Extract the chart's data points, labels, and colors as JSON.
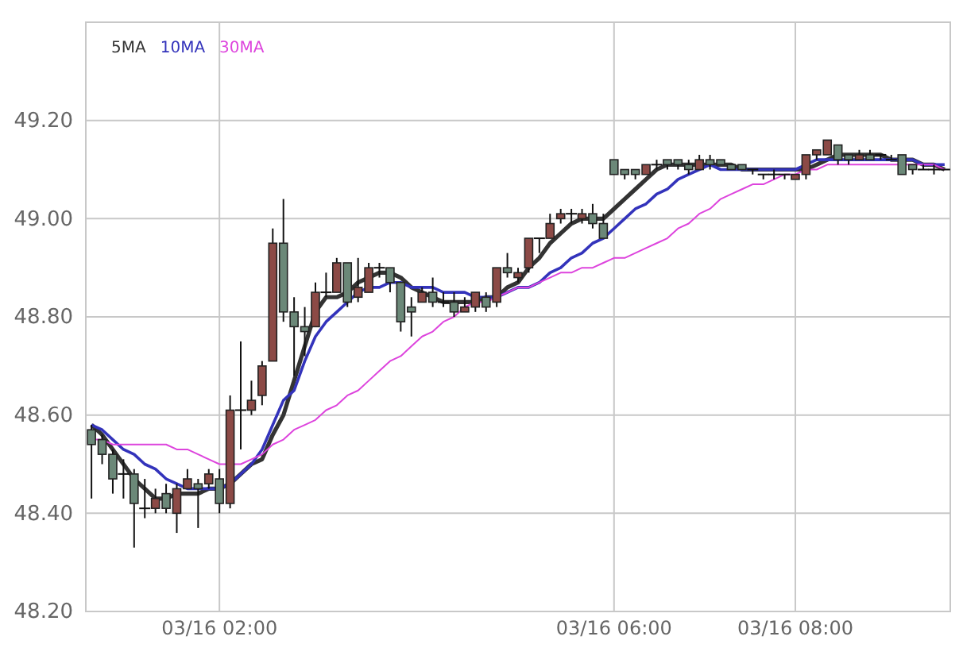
{
  "chart_data": {
    "type": "candlestick",
    "categories": [
      null,
      null,
      null,
      null,
      null,
      null,
      null,
      null,
      null,
      null,
      null,
      null,
      "03/16 02:00",
      null,
      null,
      null,
      null,
      null,
      null,
      null,
      null,
      null,
      null,
      null,
      null,
      null,
      null,
      null,
      null,
      null,
      null,
      null,
      null,
      null,
      null,
      null,
      null,
      null,
      null,
      null,
      null,
      null,
      null,
      null,
      null,
      null,
      null,
      null,
      null,
      "03/16 06:00",
      null,
      null,
      null,
      null,
      null,
      null,
      null,
      null,
      null,
      null,
      null,
      null,
      null,
      null,
      null,
      null,
      "03/16 08:00",
      null,
      null,
      null,
      null,
      null,
      null,
      null,
      null,
      null,
      null,
      null,
      null,
      null,
      null
    ],
    "ohlc": [
      [
        48.57,
        48.58,
        48.43,
        48.54
      ],
      [
        48.55,
        48.56,
        48.5,
        48.52
      ],
      [
        48.52,
        48.53,
        48.44,
        48.47
      ],
      [
        48.48,
        48.51,
        48.43,
        48.48
      ],
      [
        48.48,
        48.49,
        48.33,
        48.42
      ],
      [
        48.41,
        48.47,
        48.39,
        48.41
      ],
      [
        48.41,
        48.45,
        48.4,
        48.43
      ],
      [
        48.44,
        48.46,
        48.4,
        48.41
      ],
      [
        48.4,
        48.46,
        48.36,
        48.45
      ],
      [
        48.45,
        48.49,
        48.45,
        48.47
      ],
      [
        48.46,
        48.47,
        48.37,
        48.45
      ],
      [
        48.46,
        48.49,
        48.45,
        48.48
      ],
      [
        48.47,
        48.49,
        48.4,
        48.42
      ],
      [
        48.42,
        48.64,
        48.41,
        48.61
      ],
      [
        48.61,
        48.75,
        48.53,
        48.61
      ],
      [
        48.61,
        48.67,
        48.6,
        48.63
      ],
      [
        48.64,
        48.71,
        48.62,
        48.7
      ],
      [
        48.71,
        48.98,
        48.71,
        48.95
      ],
      [
        48.95,
        49.04,
        48.79,
        48.81
      ],
      [
        48.81,
        48.84,
        48.68,
        48.78
      ],
      [
        48.78,
        48.82,
        48.72,
        48.77
      ],
      [
        48.78,
        48.87,
        48.78,
        48.85
      ],
      [
        48.85,
        48.89,
        48.84,
        48.85
      ],
      [
        48.85,
        48.92,
        48.85,
        48.91
      ],
      [
        48.91,
        48.91,
        48.82,
        48.83
      ],
      [
        48.84,
        48.92,
        48.83,
        48.86
      ],
      [
        48.85,
        48.91,
        48.85,
        48.9
      ],
      [
        48.9,
        48.91,
        48.88,
        48.9
      ],
      [
        48.9,
        48.9,
        48.85,
        48.87
      ],
      [
        48.87,
        48.87,
        48.77,
        48.79
      ],
      [
        48.82,
        48.84,
        48.76,
        48.81
      ],
      [
        48.83,
        48.86,
        48.83,
        48.85
      ],
      [
        48.85,
        48.88,
        48.82,
        48.83
      ],
      [
        48.83,
        48.85,
        48.82,
        48.83
      ],
      [
        48.83,
        48.85,
        48.8,
        48.81
      ],
      [
        48.81,
        48.84,
        48.81,
        48.82
      ],
      [
        48.82,
        48.85,
        48.81,
        48.85
      ],
      [
        48.84,
        48.85,
        48.81,
        48.82
      ],
      [
        48.83,
        48.9,
        48.82,
        48.9
      ],
      [
        48.9,
        48.93,
        48.88,
        48.89
      ],
      [
        48.88,
        48.9,
        48.87,
        48.89
      ],
      [
        48.9,
        48.96,
        48.89,
        48.96
      ],
      [
        48.96,
        48.96,
        48.93,
        48.96
      ],
      [
        48.96,
        49.01,
        48.96,
        48.99
      ],
      [
        49.0,
        49.02,
        48.99,
        49.01
      ],
      [
        49.01,
        49.02,
        48.99,
        49.01
      ],
      [
        49.0,
        49.02,
        48.99,
        49.01
      ],
      [
        49.01,
        49.03,
        48.98,
        48.99
      ],
      [
        48.99,
        49.01,
        48.96,
        48.96
      ],
      [
        49.12,
        49.12,
        49.09,
        49.09
      ],
      [
        49.1,
        49.1,
        49.08,
        49.09
      ],
      [
        49.1,
        49.1,
        49.08,
        49.09
      ],
      [
        49.09,
        49.11,
        49.09,
        49.11
      ],
      [
        49.11,
        49.12,
        49.1,
        49.11
      ],
      [
        49.12,
        49.12,
        49.1,
        49.11
      ],
      [
        49.12,
        49.12,
        49.1,
        49.11
      ],
      [
        49.11,
        49.12,
        49.09,
        49.1
      ],
      [
        49.1,
        49.13,
        49.1,
        49.12
      ],
      [
        49.12,
        49.13,
        49.1,
        49.11
      ],
      [
        49.12,
        49.12,
        49.11,
        49.11
      ],
      [
        49.11,
        49.11,
        49.1,
        49.1
      ],
      [
        49.11,
        49.11,
        49.1,
        49.1
      ],
      [
        49.1,
        49.1,
        49.09,
        49.1
      ],
      [
        49.09,
        49.09,
        49.08,
        49.09
      ],
      [
        49.09,
        49.1,
        49.08,
        49.09
      ],
      [
        49.09,
        49.09,
        49.08,
        49.09
      ],
      [
        49.08,
        49.09,
        49.08,
        49.09
      ],
      [
        49.09,
        49.13,
        49.08,
        49.13
      ],
      [
        49.13,
        49.14,
        49.12,
        49.14
      ],
      [
        49.13,
        49.16,
        49.13,
        49.16
      ],
      [
        49.15,
        49.15,
        49.11,
        49.12
      ],
      [
        49.13,
        49.13,
        49.11,
        49.12
      ],
      [
        49.12,
        49.14,
        49.12,
        49.13
      ],
      [
        49.13,
        49.14,
        49.12,
        49.12
      ],
      [
        49.13,
        49.13,
        49.12,
        49.13
      ],
      [
        49.12,
        49.13,
        49.12,
        49.12
      ],
      [
        49.13,
        49.13,
        49.09,
        49.09
      ],
      [
        49.11,
        49.11,
        49.09,
        49.1
      ],
      [
        49.1,
        49.11,
        49.1,
        49.1
      ],
      [
        49.1,
        49.11,
        49.09,
        49.1
      ],
      [
        49.1,
        49.1,
        49.1,
        49.1
      ]
    ],
    "series": [
      {
        "name": "5MA",
        "type": "line",
        "color": "#333333",
        "values": [
          48.58,
          48.56,
          48.53,
          48.5,
          48.47,
          48.45,
          48.43,
          48.43,
          48.44,
          48.44,
          48.44,
          48.45,
          48.45,
          48.46,
          48.48,
          48.5,
          48.51,
          48.56,
          48.6,
          48.67,
          48.74,
          48.81,
          48.84,
          48.84,
          48.85,
          48.87,
          48.88,
          48.89,
          48.89,
          48.88,
          48.86,
          48.85,
          48.84,
          48.83,
          48.83,
          48.83,
          48.83,
          48.84,
          48.84,
          48.86,
          48.87,
          48.9,
          48.92,
          48.95,
          48.97,
          48.99,
          49.0,
          49.0,
          49.0,
          49.02,
          49.04,
          49.06,
          49.08,
          49.1,
          49.11,
          49.11,
          49.11,
          49.11,
          49.11,
          49.11,
          49.11,
          49.1,
          49.1,
          49.1,
          49.1,
          49.1,
          49.1,
          49.1,
          49.11,
          49.12,
          49.13,
          49.13,
          49.13,
          49.13,
          49.13,
          49.12,
          49.12,
          49.12,
          49.11,
          49.11,
          49.1
        ]
      },
      {
        "name": "10MA",
        "type": "line",
        "color": "#3333bb",
        "values": [
          48.58,
          48.57,
          48.55,
          48.53,
          48.52,
          48.5,
          48.49,
          48.47,
          48.46,
          48.45,
          48.45,
          48.45,
          48.45,
          48.46,
          48.48,
          48.5,
          48.53,
          48.58,
          48.63,
          48.65,
          48.71,
          48.76,
          48.79,
          48.81,
          48.83,
          48.85,
          48.86,
          48.86,
          48.87,
          48.87,
          48.86,
          48.86,
          48.86,
          48.85,
          48.85,
          48.85,
          48.84,
          48.84,
          48.84,
          48.85,
          48.86,
          48.86,
          48.87,
          48.89,
          48.9,
          48.92,
          48.93,
          48.95,
          48.96,
          48.98,
          49.0,
          49.02,
          49.03,
          49.05,
          49.06,
          49.08,
          49.09,
          49.1,
          49.11,
          49.1,
          49.1,
          49.1,
          49.1,
          49.1,
          49.1,
          49.1,
          49.1,
          49.11,
          49.12,
          49.12,
          49.12,
          49.12,
          49.12,
          49.12,
          49.12,
          49.12,
          49.12,
          49.12,
          49.11,
          49.11,
          49.11
        ]
      },
      {
        "name": "30MA",
        "type": "line",
        "color": "#dd44dd",
        "values": [
          48.55,
          48.55,
          48.54,
          48.54,
          48.54,
          48.54,
          48.54,
          48.54,
          48.53,
          48.53,
          48.52,
          48.51,
          48.5,
          48.5,
          48.5,
          48.51,
          48.52,
          48.54,
          48.55,
          48.57,
          48.58,
          48.59,
          48.61,
          48.62,
          48.64,
          48.65,
          48.67,
          48.69,
          48.71,
          48.72,
          48.74,
          48.76,
          48.77,
          48.79,
          48.8,
          48.82,
          48.83,
          48.83,
          48.84,
          48.85,
          48.86,
          48.86,
          48.87,
          48.88,
          48.89,
          48.89,
          48.9,
          48.9,
          48.91,
          48.92,
          48.92,
          48.93,
          48.94,
          48.95,
          48.96,
          48.98,
          48.99,
          49.01,
          49.02,
          49.04,
          49.05,
          49.06,
          49.07,
          49.07,
          49.08,
          49.09,
          49.09,
          49.1,
          49.1,
          49.11,
          49.11,
          49.11,
          49.11,
          49.11,
          49.11,
          49.11,
          49.11,
          49.11,
          49.11,
          49.11,
          49.1
        ]
      }
    ],
    "ylim": [
      48.2,
      49.4
    ],
    "yticks": [
      {
        "value": 48.2,
        "label": "48.20"
      },
      {
        "value": 48.4,
        "label": "48.40"
      },
      {
        "value": 48.6,
        "label": "48.60"
      },
      {
        "value": 48.8,
        "label": "48.80"
      },
      {
        "value": 49.0,
        "label": "49.00"
      },
      {
        "value": 49.2,
        "label": "49.20"
      }
    ],
    "grid": true,
    "legend": "top left",
    "line_style": "solid"
  }
}
